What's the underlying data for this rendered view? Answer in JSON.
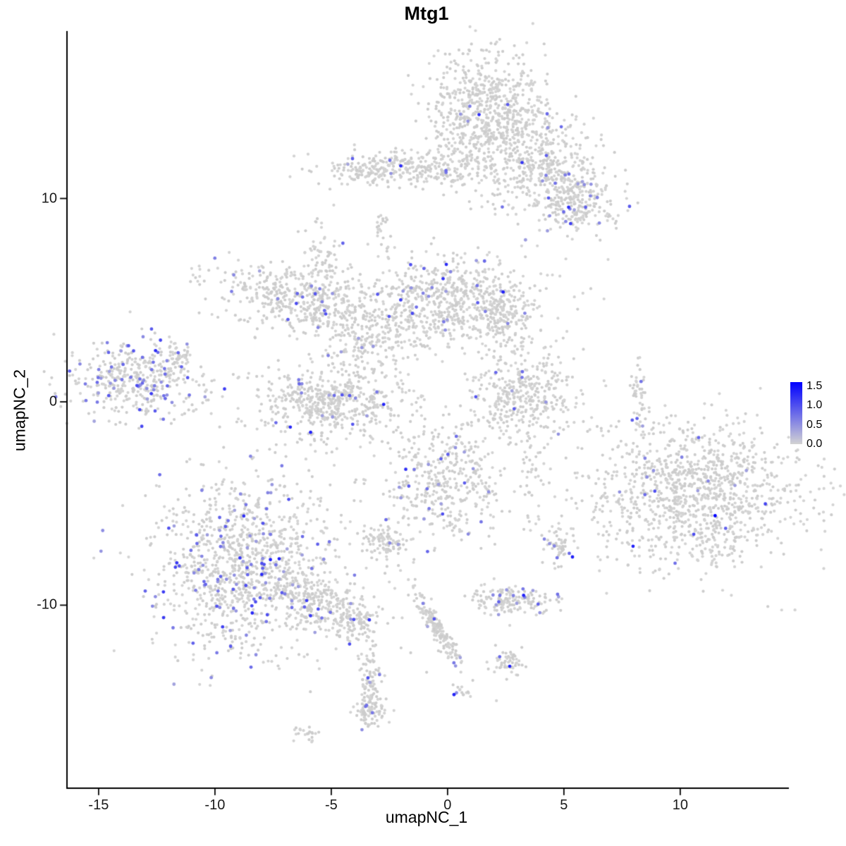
{
  "chart_data": {
    "type": "scatter",
    "title": "Mtg1",
    "xlabel": "umapNC_1",
    "ylabel": "umapNC_2",
    "xlim": [
      -16.36,
      14.55
    ],
    "ylim": [
      -19.0,
      18.2
    ],
    "x_ticks": [
      -15,
      -10,
      -5,
      0,
      5,
      10
    ],
    "x_tick_labels": [
      "-15",
      "-10",
      "-5",
      "0",
      "5",
      "10"
    ],
    "y_ticks": [
      10,
      0,
      -10
    ],
    "y_tick_labels": [
      "10",
      "0",
      "-10"
    ],
    "grid": false,
    "point_radius": 2.1,
    "base_color": "#d3d3d3",
    "legend": {
      "position": "right-middle",
      "low_value": 0.0,
      "high_value": 1.6,
      "low_color": "#d3d3d3",
      "high_color": "#0000ff",
      "tick_values": [
        1.5,
        1.0,
        0.5,
        0.0
      ],
      "tick_labels": [
        "1.5",
        "1.0",
        "0.5",
        "0.0"
      ]
    },
    "seed": 42,
    "clusters": [
      {
        "name": "top-main",
        "cx": 1.6,
        "cy": 14.3,
        "sx": 1.3,
        "sy": 1.5,
        "rot": 0,
        "n": 650,
        "expr_frac": 0.025
      },
      {
        "name": "top-right-sparse",
        "cx": 3.2,
        "cy": 12.6,
        "sx": 1.4,
        "sy": 1.3,
        "rot": 0,
        "n": 260,
        "expr_frac": 0.008
      },
      {
        "name": "top-right-blob",
        "cx": 4.6,
        "cy": 11.2,
        "sx": 1.1,
        "sy": 0.9,
        "rot": 0,
        "n": 260,
        "expr_frac": 0.015
      },
      {
        "name": "right-upper-blob",
        "cx": 5.6,
        "cy": 9.7,
        "sx": 0.8,
        "sy": 0.7,
        "rot": 0,
        "n": 200,
        "expr_frac": 0.07
      },
      {
        "name": "upper-band",
        "cx": -1.9,
        "cy": 11.5,
        "sx": 1.9,
        "sy": 0.4,
        "rot": 0,
        "n": 280,
        "expr_frac": 0.02
      },
      {
        "name": "upper-band-left-tip",
        "cx": -3.5,
        "cy": 11.3,
        "sx": 0.4,
        "sy": 0.3,
        "rot": 0,
        "n": 40,
        "expr_frac": 0.03
      },
      {
        "name": "speck-upper",
        "cx": -2.9,
        "cy": 8.8,
        "sx": 0.18,
        "sy": 0.25,
        "rot": 0,
        "n": 14,
        "expr_frac": 0
      },
      {
        "name": "speck-upper2",
        "cx": -2.7,
        "cy": 7.9,
        "sx": 0.3,
        "sy": 0.5,
        "rot": 0,
        "n": 10,
        "expr_frac": 0
      },
      {
        "name": "below-top-sparse",
        "cx": -0.2,
        "cy": 12.0,
        "sx": 0.6,
        "sy": 0.6,
        "rot": 0,
        "n": 25,
        "expr_frac": 0.04
      },
      {
        "name": "mid-left",
        "cx": -6.3,
        "cy": 5.0,
        "sx": 1.7,
        "sy": 0.85,
        "rot": -15,
        "n": 480,
        "expr_frac": 0.045
      },
      {
        "name": "mid-left-tail",
        "cx": -5.3,
        "cy": 7.0,
        "sx": 0.35,
        "sy": 0.9,
        "rot": 10,
        "n": 60,
        "expr_frac": 0.02
      },
      {
        "name": "mid-trail",
        "cx": -3.9,
        "cy": 2.8,
        "sx": 0.6,
        "sy": 1.1,
        "rot": 0,
        "n": 110,
        "expr_frac": 0.04
      },
      {
        "name": "center-mid",
        "cx": 0.3,
        "cy": 4.9,
        "sx": 1.9,
        "sy": 1.15,
        "rot": 0,
        "n": 700,
        "expr_frac": 0.035
      },
      {
        "name": "center-mid-right-lobe",
        "cx": 2.3,
        "cy": 4.0,
        "sx": 0.6,
        "sy": 0.8,
        "rot": 0,
        "n": 120,
        "expr_frac": 0.01
      },
      {
        "name": "below-band-sparse",
        "cx": -2.3,
        "cy": 3.1,
        "sx": 0.4,
        "sy": 0.9,
        "rot": 0,
        "n": 50,
        "expr_frac": 0.05
      },
      {
        "name": "left-cluster",
        "cx": -13.4,
        "cy": 1.1,
        "sx": 1.5,
        "sy": 0.95,
        "rot": 0,
        "n": 430,
        "expr_frac": 0.17
      },
      {
        "name": "left-cluster-tab",
        "cx": -11.6,
        "cy": 2.3,
        "sx": 0.4,
        "sy": 0.35,
        "rot": 0,
        "n": 45,
        "expr_frac": 0.02
      },
      {
        "name": "left-detached-speck",
        "cx": -10.6,
        "cy": 6.2,
        "sx": 0.35,
        "sy": 0.3,
        "rot": 0,
        "n": 12,
        "expr_frac": 0
      },
      {
        "name": "center-crescent",
        "cx": -5.0,
        "cy": 0.1,
        "sx": 1.6,
        "sy": 0.95,
        "rot": 0,
        "n": 560,
        "expr_frac": 0.045
      },
      {
        "name": "right-crescent",
        "cx": 3.2,
        "cy": 0.3,
        "sx": 1.15,
        "sy": 1.05,
        "rot": 0,
        "n": 380,
        "expr_frac": 0.012
      },
      {
        "name": "right-sliver",
        "cx": 8.2,
        "cy": 0.3,
        "sx": 0.16,
        "sy": 0.9,
        "rot": 0,
        "n": 45,
        "expr_frac": 0.06
      },
      {
        "name": "right-big",
        "cx": 10.6,
        "cy": -4.6,
        "sx": 2.3,
        "sy": 1.85,
        "rot": 0,
        "n": 1150,
        "expr_frac": 0.014
      },
      {
        "name": "center-low",
        "cx": -0.2,
        "cy": -4.0,
        "sx": 1.25,
        "sy": 1.5,
        "rot": 0,
        "n": 400,
        "expr_frac": 0.045
      },
      {
        "name": "small-center-blob",
        "cx": -2.7,
        "cy": -6.9,
        "sx": 0.5,
        "sy": 0.4,
        "rot": 0,
        "n": 90,
        "expr_frac": 0.035
      },
      {
        "name": "bottom-left-main",
        "cx": -8.6,
        "cy": -8.1,
        "sx": 2.0,
        "sy": 2.1,
        "rot": 0,
        "n": 1150,
        "expr_frac": 0.09
      },
      {
        "name": "bottom-left-tail",
        "cx": -5.4,
        "cy": -9.9,
        "sx": 1.3,
        "sy": 0.65,
        "rot": -25,
        "n": 260,
        "expr_frac": 0.06
      },
      {
        "name": "tail-tip",
        "cx": -3.9,
        "cy": -10.8,
        "sx": 0.5,
        "sy": 0.4,
        "rot": 0,
        "n": 70,
        "expr_frac": 0.03
      },
      {
        "name": "small-right-blob",
        "cx": 4.9,
        "cy": -7.1,
        "sx": 0.35,
        "sy": 0.45,
        "rot": 0,
        "n": 55,
        "expr_frac": 0.07
      },
      {
        "name": "small-low-cluster",
        "cx": 2.75,
        "cy": -9.7,
        "sx": 0.85,
        "sy": 0.4,
        "rot": 0,
        "n": 160,
        "expr_frac": 0.09
      },
      {
        "name": "diag-streak",
        "cx": -0.45,
        "cy": -11.1,
        "sx": 0.15,
        "sy": 1.15,
        "rot": 28,
        "n": 180,
        "expr_frac": 0.04
      },
      {
        "name": "blob-low-right",
        "cx": 2.6,
        "cy": -12.8,
        "sx": 0.4,
        "sy": 0.3,
        "rot": 0,
        "n": 55,
        "expr_frac": 0.05
      },
      {
        "name": "bottom-streak",
        "cx": -3.4,
        "cy": -13.9,
        "sx": 0.22,
        "sy": 0.8,
        "rot": 0,
        "n": 90,
        "expr_frac": 0.05
      },
      {
        "name": "bottom-blob",
        "cx": -3.3,
        "cy": -15.2,
        "sx": 0.35,
        "sy": 0.45,
        "rot": 0,
        "n": 70,
        "expr_frac": 0.04
      },
      {
        "name": "tiny-bottom-left",
        "cx": -6.1,
        "cy": -16.3,
        "sx": 0.25,
        "sy": 0.18,
        "rot": 0,
        "n": 22,
        "expr_frac": 0.05
      },
      {
        "name": "tiny-bottom-center",
        "cx": 0.6,
        "cy": -14.3,
        "sx": 0.2,
        "sy": 0.25,
        "rot": 0,
        "n": 14,
        "expr_frac": 0.1
      },
      {
        "name": "sparse-trail-right",
        "cx": 3.6,
        "cy": -3.6,
        "sx": 0.25,
        "sy": 1.4,
        "rot": 0,
        "n": 40,
        "expr_frac": 0
      },
      {
        "name": "speck-low-left",
        "cx": -3.6,
        "cy": -11.9,
        "sx": 0.3,
        "sy": 0.3,
        "rot": 0,
        "n": 12,
        "expr_frac": 0
      }
    ],
    "singles_gray": [
      [
        6.9,
        7.0
      ],
      [
        3.8,
        -2.7
      ],
      [
        2.1,
        -14.7
      ],
      [
        -0.9,
        -13.3
      ],
      [
        4.1,
        -10.4
      ],
      [
        -2.0,
        -12.1
      ]
    ],
    "singles_expr": [
      [
        11.5,
        -5.6,
        1.6
      ],
      [
        -4.5,
        7.8,
        0.85
      ],
      [
        3.2,
        1.2,
        0.7
      ]
    ]
  }
}
